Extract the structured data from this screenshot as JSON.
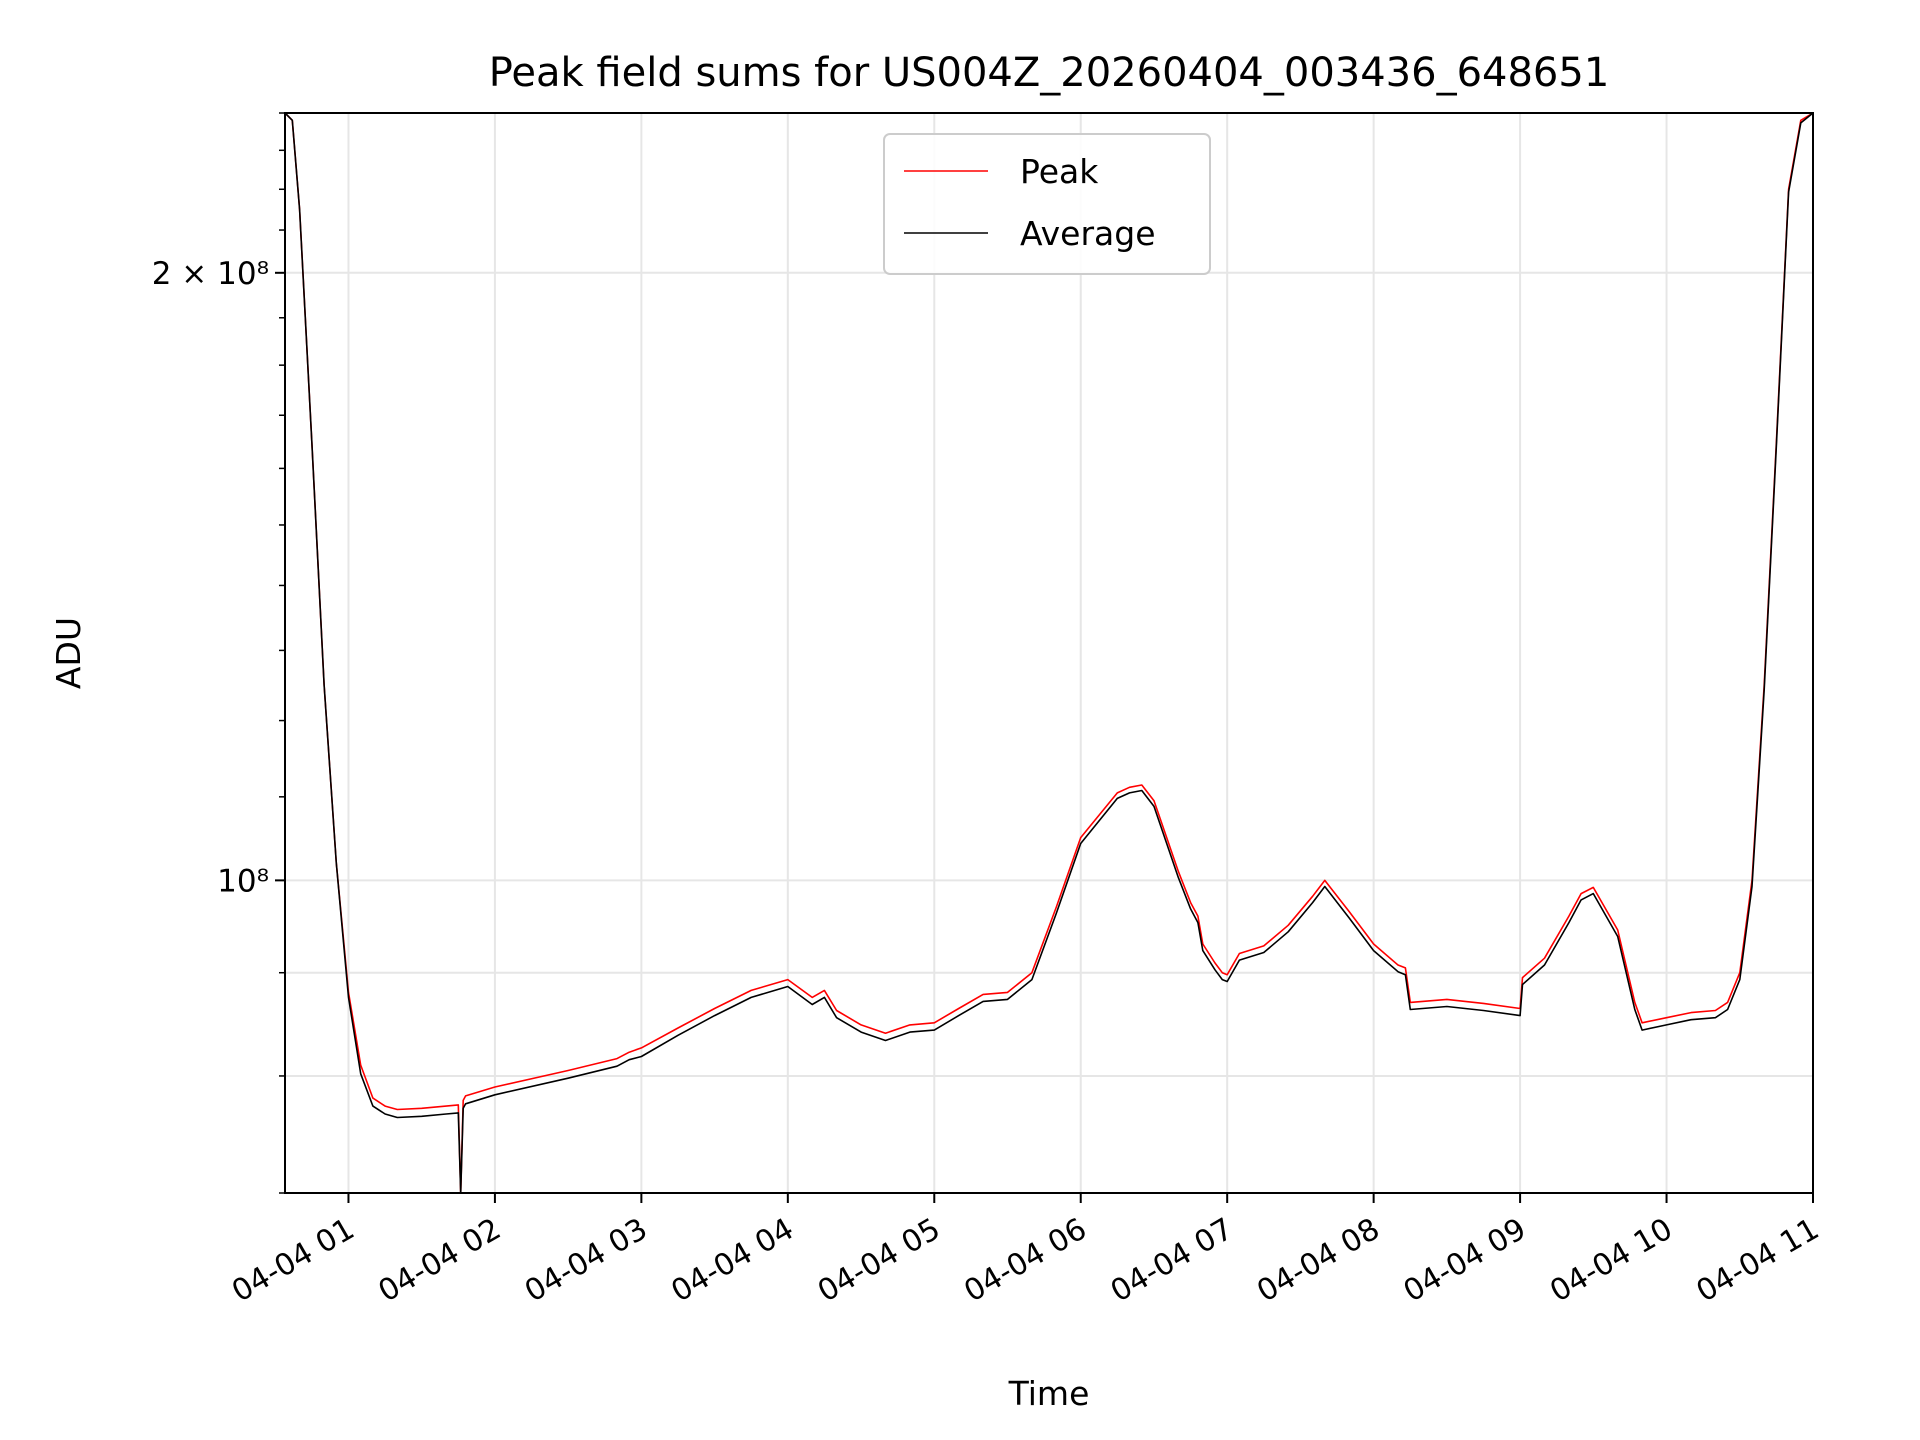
{
  "chart_data": {
    "type": "line",
    "title": "Peak field sums for US004Z_20260404_003436_648651",
    "xlabel": "Time",
    "ylabel": "ADU",
    "y_scale": "log",
    "grid": true,
    "legend_position": "top-center",
    "x_ticks": [
      "04-04 01",
      "04-04 02",
      "04-04 03",
      "04-04 04",
      "04-04 05",
      "04-04 06",
      "04-04 07",
      "04-04 08",
      "04-04 09",
      "04-04 10",
      "04-04 11"
    ],
    "y_ticks": [
      {
        "value": 200000000,
        "label": "2 × 10⁸"
      },
      {
        "value": 100000000,
        "label": "10⁸"
      }
    ],
    "xlim": [
      "2026-04-04 00:34",
      "2026-04-04 11:00"
    ],
    "ylim": [
      70000000,
      240000000
    ],
    "series": [
      {
        "name": "Peak",
        "color": "#ff0000",
        "x": [
          "2026-04-04 00:34",
          "2026-04-04 00:37",
          "2026-04-04 00:40",
          "2026-04-04 00:45",
          "2026-04-04 00:50",
          "2026-04-04 00:55",
          "2026-04-04 01:00",
          "2026-04-04 01:05",
          "2026-04-04 01:10",
          "2026-04-04 01:15",
          "2026-04-04 01:20",
          "2026-04-04 01:30",
          "2026-04-04 01:40",
          "2026-04-04 01:45",
          "2026-04-04 01:46",
          "2026-04-04 01:47",
          "2026-04-04 01:48",
          "2026-04-04 02:00",
          "2026-04-04 02:30",
          "2026-04-04 02:50",
          "2026-04-04 02:55",
          "2026-04-04 03:00",
          "2026-04-04 03:15",
          "2026-04-04 03:30",
          "2026-04-04 03:45",
          "2026-04-04 04:00",
          "2026-04-04 04:10",
          "2026-04-04 04:15",
          "2026-04-04 04:20",
          "2026-04-04 04:30",
          "2026-04-04 04:40",
          "2026-04-04 04:50",
          "2026-04-04 05:00",
          "2026-04-04 05:10",
          "2026-04-04 05:20",
          "2026-04-04 05:30",
          "2026-04-04 05:40",
          "2026-04-04 05:50",
          "2026-04-04 06:00",
          "2026-04-04 06:15",
          "2026-04-04 06:20",
          "2026-04-04 06:25",
          "2026-04-04 06:30",
          "2026-04-04 06:40",
          "2026-04-04 06:45",
          "2026-04-04 06:48",
          "2026-04-04 06:50",
          "2026-04-04 06:55",
          "2026-04-04 06:58",
          "2026-04-04 07:00",
          "2026-04-04 07:05",
          "2026-04-04 07:15",
          "2026-04-04 07:25",
          "2026-04-04 07:35",
          "2026-04-04 07:40",
          "2026-04-04 07:50",
          "2026-04-04 08:00",
          "2026-04-04 08:10",
          "2026-04-04 08:13",
          "2026-04-04 08:15",
          "2026-04-04 08:30",
          "2026-04-04 08:45",
          "2026-04-04 09:00",
          "2026-04-04 09:01",
          "2026-04-04 09:10",
          "2026-04-04 09:20",
          "2026-04-04 09:25",
          "2026-04-04 09:30",
          "2026-04-04 09:40",
          "2026-04-04 09:47",
          "2026-04-04 09:50",
          "2026-04-04 10:00",
          "2026-04-04 10:10",
          "2026-04-04 10:20",
          "2026-04-04 10:25",
          "2026-04-04 10:30",
          "2026-04-04 10:35",
          "2026-04-04 10:40",
          "2026-04-04 10:45",
          "2026-04-04 10:50",
          "2026-04-04 10:55",
          "2026-04-04 11:00"
        ],
        "y": [
          240000000,
          238000000,
          215000000,
          165000000,
          125000000,
          102000000,
          88000000,
          81000000,
          78000000,
          77300000,
          77000000,
          77100000,
          77300000,
          77400000,
          70000000,
          77800000,
          78200000,
          79000000,
          80500000,
          81600000,
          82200000,
          82600000,
          84500000,
          86400000,
          88200000,
          89300000,
          87500000,
          88200000,
          86200000,
          84800000,
          84000000,
          84800000,
          85000000,
          86400000,
          87800000,
          88000000,
          90000000,
          97000000,
          105000000,
          110500000,
          111200000,
          111500000,
          109500000,
          101000000,
          97500000,
          96000000,
          93000000,
          91000000,
          90000000,
          89800000,
          92000000,
          92800000,
          95000000,
          98200000,
          100000000,
          96500000,
          93000000,
          90800000,
          90500000,
          87000000,
          87300000,
          86900000,
          86400000,
          89500000,
          91500000,
          96000000,
          98500000,
          99200000,
          94500000,
          87000000,
          85000000,
          85500000,
          86000000,
          86200000,
          87000000,
          90000000,
          100000000,
          125000000,
          165000000,
          220000000,
          238000000,
          240000000
        ]
      },
      {
        "name": "Average",
        "color": "#000000",
        "x": [
          "2026-04-04 00:34",
          "2026-04-04 00:37",
          "2026-04-04 00:40",
          "2026-04-04 00:45",
          "2026-04-04 00:50",
          "2026-04-04 00:55",
          "2026-04-04 01:00",
          "2026-04-04 01:05",
          "2026-04-04 01:10",
          "2026-04-04 01:15",
          "2026-04-04 01:20",
          "2026-04-04 01:30",
          "2026-04-04 01:40",
          "2026-04-04 01:45",
          "2026-04-04 01:46",
          "2026-04-04 01:47",
          "2026-04-04 01:48",
          "2026-04-04 02:00",
          "2026-04-04 02:30",
          "2026-04-04 02:50",
          "2026-04-04 02:55",
          "2026-04-04 03:00",
          "2026-04-04 03:15",
          "2026-04-04 03:30",
          "2026-04-04 03:45",
          "2026-04-04 04:00",
          "2026-04-04 04:10",
          "2026-04-04 04:15",
          "2026-04-04 04:20",
          "2026-04-04 04:30",
          "2026-04-04 04:40",
          "2026-04-04 04:50",
          "2026-04-04 05:00",
          "2026-04-04 05:10",
          "2026-04-04 05:20",
          "2026-04-04 05:30",
          "2026-04-04 05:40",
          "2026-04-04 05:50",
          "2026-04-04 06:00",
          "2026-04-04 06:15",
          "2026-04-04 06:20",
          "2026-04-04 06:25",
          "2026-04-04 06:30",
          "2026-04-04 06:40",
          "2026-04-04 06:45",
          "2026-04-04 06:48",
          "2026-04-04 06:50",
          "2026-04-04 06:55",
          "2026-04-04 06:58",
          "2026-04-04 07:00",
          "2026-04-04 07:05",
          "2026-04-04 07:15",
          "2026-04-04 07:25",
          "2026-04-04 07:35",
          "2026-04-04 07:40",
          "2026-04-04 07:50",
          "2026-04-04 08:00",
          "2026-04-04 08:10",
          "2026-04-04 08:13",
          "2026-04-04 08:15",
          "2026-04-04 08:30",
          "2026-04-04 08:45",
          "2026-04-04 09:00",
          "2026-04-04 09:01",
          "2026-04-04 09:10",
          "2026-04-04 09:20",
          "2026-04-04 09:25",
          "2026-04-04 09:30",
          "2026-04-04 09:40",
          "2026-04-04 09:47",
          "2026-04-04 09:50",
          "2026-04-04 10:00",
          "2026-04-04 10:10",
          "2026-04-04 10:20",
          "2026-04-04 10:25",
          "2026-04-04 10:30",
          "2026-04-04 10:35",
          "2026-04-04 10:40",
          "2026-04-04 10:45",
          "2026-04-04 10:50",
          "2026-04-04 10:55",
          "2026-04-04 11:00"
        ],
        "y": [
          240000000,
          238000000,
          215000000,
          165000000,
          125000000,
          102000000,
          87500000,
          80200000,
          77300000,
          76600000,
          76300000,
          76400000,
          76600000,
          76700000,
          69500000,
          77100000,
          77500000,
          78300000,
          79800000,
          80900000,
          81500000,
          81800000,
          83800000,
          85700000,
          87500000,
          88600000,
          86800000,
          87500000,
          85500000,
          84100000,
          83300000,
          84100000,
          84300000,
          85700000,
          87100000,
          87300000,
          89300000,
          96300000,
          104300000,
          109800000,
          110500000,
          110800000,
          108800000,
          100300000,
          96800000,
          95300000,
          92300000,
          90300000,
          89300000,
          89100000,
          91300000,
          92100000,
          94300000,
          97500000,
          99300000,
          95800000,
          92300000,
          90100000,
          89800000,
          86300000,
          86600000,
          86200000,
          85700000,
          88800000,
          90800000,
          95300000,
          97800000,
          98500000,
          93800000,
          86300000,
          84300000,
          84800000,
          85300000,
          85500000,
          86300000,
          89300000,
          99300000,
          124300000,
          164300000,
          219300000,
          237300000,
          240000000
        ]
      }
    ]
  }
}
